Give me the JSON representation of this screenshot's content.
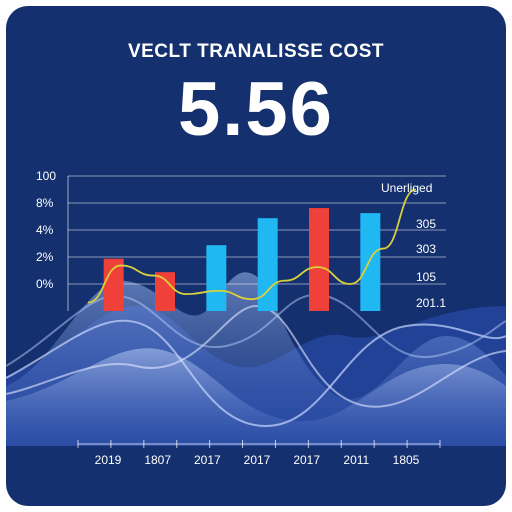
{
  "header": {
    "title": "VECLT TRANALISSE COST",
    "value": "5.56"
  },
  "chart_data": {
    "type": "bar",
    "title": "VECLT TRANALISSE COST",
    "y_ticks": [
      "100",
      "8%",
      "4%",
      "2%",
      "0%"
    ],
    "x_ticks": [
      "2019",
      "1807",
      "2017",
      "2017",
      "2017",
      "2011",
      "1805"
    ],
    "legend_label": "Unerliged",
    "right_labels": [
      "305",
      "303",
      "105",
      "201.1"
    ],
    "bars": [
      {
        "value": 1.55,
        "color": "#f0403a"
      },
      {
        "value": 1.15,
        "color": "#f0403a"
      },
      {
        "value": 1.95,
        "color": "#1fb8f2"
      },
      {
        "value": 2.75,
        "color": "#1fb8f2"
      },
      {
        "value": 3.05,
        "color": "#f0403a"
      },
      {
        "value": 2.9,
        "color": "#1fb8f2"
      }
    ],
    "line": {
      "color": "#d9d03a",
      "values": [
        0.25,
        1.35,
        1.05,
        0.5,
        0.6,
        0.35,
        0.9,
        1.3,
        0.8,
        1.85,
        3.6
      ]
    },
    "ylim": [
      0,
      4
    ],
    "grid": true
  },
  "colors": {
    "background": "#14306e",
    "red": "#f0403a",
    "blue": "#1fb8f2",
    "line": "#d9d03a"
  }
}
